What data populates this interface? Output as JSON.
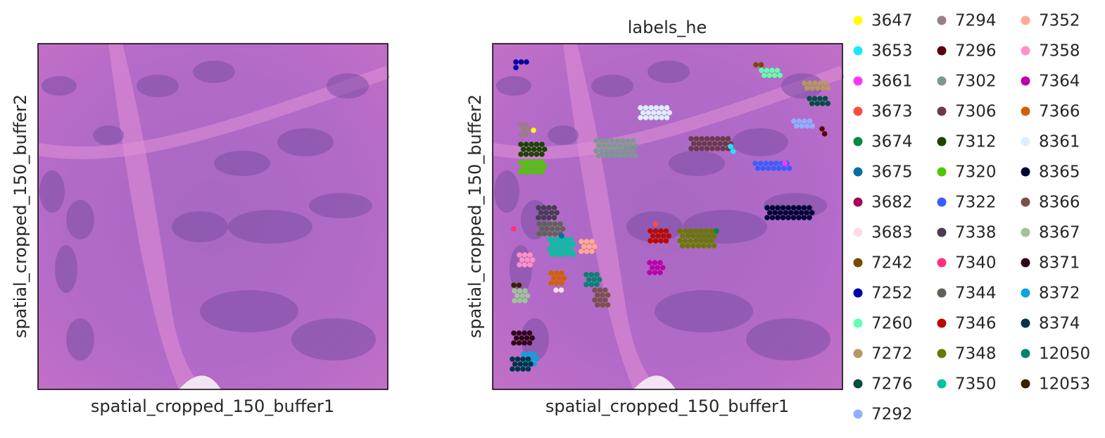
{
  "panels": [
    {
      "x_label": "spatial_cropped_150_buffer1",
      "y_label": "spatial_cropped_150_buffer2"
    },
    {
      "title": "labels_he",
      "x_label": "spatial_cropped_150_buffer1",
      "y_label": "spatial_cropped_150_buffer2"
    }
  ],
  "legend": {
    "entries": [
      {
        "label": "3647",
        "color": "#ffff00"
      },
      {
        "label": "3653",
        "color": "#1ce6ff"
      },
      {
        "label": "3661",
        "color": "#ff34ff"
      },
      {
        "label": "3673",
        "color": "#ff4a46"
      },
      {
        "label": "3674",
        "color": "#008941"
      },
      {
        "label": "3675",
        "color": "#006fa6"
      },
      {
        "label": "3682",
        "color": "#a30059"
      },
      {
        "label": "3683",
        "color": "#ffdbe5"
      },
      {
        "label": "7242",
        "color": "#7a4900"
      },
      {
        "label": "7252",
        "color": "#0000a6"
      },
      {
        "label": "7260",
        "color": "#63ffac"
      },
      {
        "label": "7272",
        "color": "#b79762"
      },
      {
        "label": "7276",
        "color": "#004d43"
      },
      {
        "label": "7292",
        "color": "#8fb0ff"
      },
      {
        "label": "7294",
        "color": "#997d87"
      },
      {
        "label": "7296",
        "color": "#5a0007"
      },
      {
        "label": "7302",
        "color": "#809693"
      },
      {
        "label": "7306",
        "color": "#6a3a4c"
      },
      {
        "label": "7312",
        "color": "#1b4400"
      },
      {
        "label": "7320",
        "color": "#4fc601"
      },
      {
        "label": "7322",
        "color": "#3b5dff"
      },
      {
        "label": "7338",
        "color": "#4a3b53"
      },
      {
        "label": "7340",
        "color": "#ff2f80"
      },
      {
        "label": "7344",
        "color": "#61615a"
      },
      {
        "label": "7346",
        "color": "#ba0900"
      },
      {
        "label": "7348",
        "color": "#6b7900"
      },
      {
        "label": "7350",
        "color": "#00c2a0"
      },
      {
        "label": "7352",
        "color": "#ffaa92"
      },
      {
        "label": "7358",
        "color": "#ff90c9"
      },
      {
        "label": "7364",
        "color": "#b903aa"
      },
      {
        "label": "7366",
        "color": "#d16100"
      },
      {
        "label": "8361",
        "color": "#ddefff"
      },
      {
        "label": "8365",
        "color": "#000035"
      },
      {
        "label": "8366",
        "color": "#7b4f4b"
      },
      {
        "label": "8367",
        "color": "#a1c299"
      },
      {
        "label": "8371",
        "color": "#300018"
      },
      {
        "label": "8372",
        "color": "#0aa6d8"
      },
      {
        "label": "8374",
        "color": "#013349"
      },
      {
        "label": "12050",
        "color": "#00846f"
      },
      {
        "label": "12053",
        "color": "#372101"
      }
    ]
  }
}
